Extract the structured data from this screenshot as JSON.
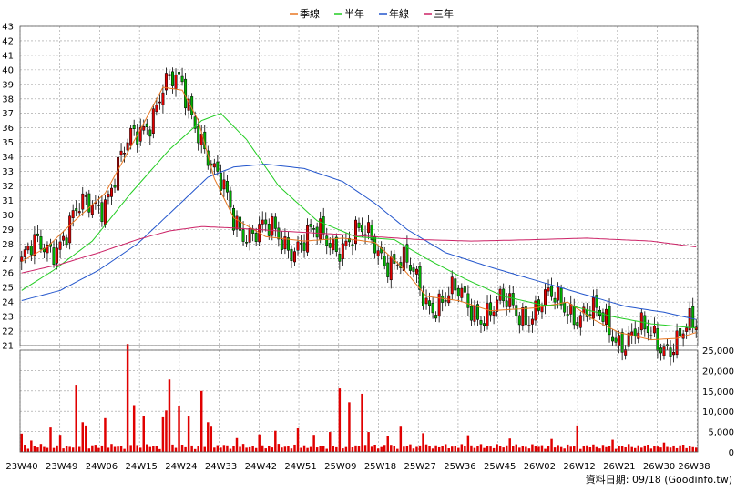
{
  "chart_data": [
    {
      "type": "candlestick",
      "legend": [
        {
          "name": "季線",
          "color": "#e87722"
        },
        {
          "name": "半年",
          "color": "#22cc22"
        },
        {
          "name": "年線",
          "color": "#2255cc"
        },
        {
          "name": "三年",
          "color": "#cc2266"
        }
      ],
      "legend_placement": "top-center",
      "ylim": [
        21,
        43
      ],
      "y_ticks": [
        21,
        22,
        23,
        24,
        25,
        26,
        27,
        28,
        29,
        30,
        31,
        32,
        33,
        34,
        35,
        36,
        37,
        38,
        39,
        40,
        41,
        42,
        43
      ],
      "grid": true,
      "x_ticks": [
        "23W40",
        "23W49",
        "24W06",
        "24W15",
        "24W24",
        "24W33",
        "24W42",
        "24W51",
        "25W09",
        "25W18",
        "25W27",
        "25W36",
        "25W45",
        "26W02",
        "26W12",
        "26W21",
        "26W30",
        "26W38"
      ],
      "up_color": "#e00000",
      "down_color": "#00b000",
      "ma_anchors": {
        "季線": [
          [
            0,
            26.8
          ],
          [
            8,
            27.8
          ],
          [
            16,
            29.5
          ],
          [
            26,
            31.5
          ],
          [
            36,
            35.5
          ],
          [
            44,
            38.8
          ],
          [
            50,
            38.6
          ],
          [
            55,
            36.5
          ],
          [
            60,
            32.5
          ],
          [
            66,
            29.8
          ],
          [
            76,
            28.5
          ],
          [
            88,
            28.2
          ],
          [
            100,
            28.4
          ],
          [
            110,
            28.1
          ],
          [
            118,
            26.5
          ],
          [
            126,
            24.4
          ],
          [
            136,
            24.1
          ],
          [
            146,
            23.4
          ],
          [
            160,
            23.6
          ],
          [
            170,
            24.0
          ],
          [
            178,
            22.8
          ],
          [
            186,
            21.9
          ],
          [
            196,
            21.4
          ],
          [
            204,
            21.5
          ],
          [
            210,
            21.9
          ]
        ],
        "半年": [
          [
            0,
            24.8
          ],
          [
            10,
            26.2
          ],
          [
            22,
            28.2
          ],
          [
            34,
            31.5
          ],
          [
            46,
            34.5
          ],
          [
            56,
            36.5
          ],
          [
            62,
            37.0
          ],
          [
            70,
            35.2
          ],
          [
            80,
            32.0
          ],
          [
            92,
            29.6
          ],
          [
            104,
            28.5
          ],
          [
            116,
            28.3
          ],
          [
            126,
            27.0
          ],
          [
            138,
            25.6
          ],
          [
            150,
            24.4
          ],
          [
            162,
            23.8
          ],
          [
            172,
            23.7
          ],
          [
            184,
            23.0
          ],
          [
            196,
            22.5
          ],
          [
            210,
            22.2
          ]
        ],
        "年線": [
          [
            0,
            24.1
          ],
          [
            12,
            24.8
          ],
          [
            24,
            26.2
          ],
          [
            36,
            28.0
          ],
          [
            48,
            30.5
          ],
          [
            58,
            32.6
          ],
          [
            66,
            33.3
          ],
          [
            76,
            33.5
          ],
          [
            88,
            33.2
          ],
          [
            100,
            32.3
          ],
          [
            110,
            30.8
          ],
          [
            120,
            29.0
          ],
          [
            132,
            27.4
          ],
          [
            146,
            26.4
          ],
          [
            160,
            25.5
          ],
          [
            174,
            24.6
          ],
          [
            188,
            23.7
          ],
          [
            200,
            23.3
          ],
          [
            210,
            22.8
          ]
        ],
        "三年": [
          [
            0,
            26.0
          ],
          [
            12,
            26.6
          ],
          [
            24,
            27.4
          ],
          [
            36,
            28.3
          ],
          [
            46,
            28.9
          ],
          [
            56,
            29.2
          ],
          [
            66,
            29.1
          ],
          [
            80,
            28.9
          ],
          [
            96,
            28.7
          ],
          [
            110,
            28.5
          ],
          [
            124,
            28.3
          ],
          [
            140,
            28.2
          ],
          [
            160,
            28.3
          ],
          [
            176,
            28.4
          ],
          [
            196,
            28.2
          ],
          [
            210,
            27.8
          ]
        ]
      },
      "volume": {
        "ylim": [
          0,
          25000
        ],
        "y_ticks": [
          "25,000",
          "20,000",
          "15,000",
          "10,000",
          "5,000",
          "0"
        ],
        "color": "#e00000",
        "peaks": [
          [
            0,
            4500
          ],
          [
            3,
            2800
          ],
          [
            9,
            6000
          ],
          [
            12,
            4200
          ],
          [
            17,
            16500
          ],
          [
            19,
            7300
          ],
          [
            20,
            6500
          ],
          [
            26,
            8300
          ],
          [
            33,
            26500
          ],
          [
            35,
            11500
          ],
          [
            38,
            8800
          ],
          [
            44,
            8500
          ],
          [
            45,
            10200
          ],
          [
            46,
            17800
          ],
          [
            49,
            11200
          ],
          [
            52,
            8700
          ],
          [
            56,
            15000
          ],
          [
            58,
            7300
          ],
          [
            59,
            6200
          ],
          [
            67,
            3400
          ],
          [
            74,
            4300
          ],
          [
            79,
            5200
          ],
          [
            86,
            5800
          ],
          [
            91,
            4200
          ],
          [
            96,
            4900
          ],
          [
            99,
            15600
          ],
          [
            102,
            12200
          ],
          [
            106,
            14300
          ],
          [
            108,
            4900
          ],
          [
            114,
            3900
          ],
          [
            118,
            6200
          ],
          [
            125,
            4600
          ],
          [
            139,
            4100
          ],
          [
            152,
            3300
          ],
          [
            165,
            3200
          ],
          [
            173,
            6500
          ],
          [
            184,
            3000
          ],
          [
            200,
            2300
          ]
        ]
      }
    }
  ],
  "footer": {
    "source_label": "資料日期: 09/18 (Goodinfo.tw)"
  }
}
